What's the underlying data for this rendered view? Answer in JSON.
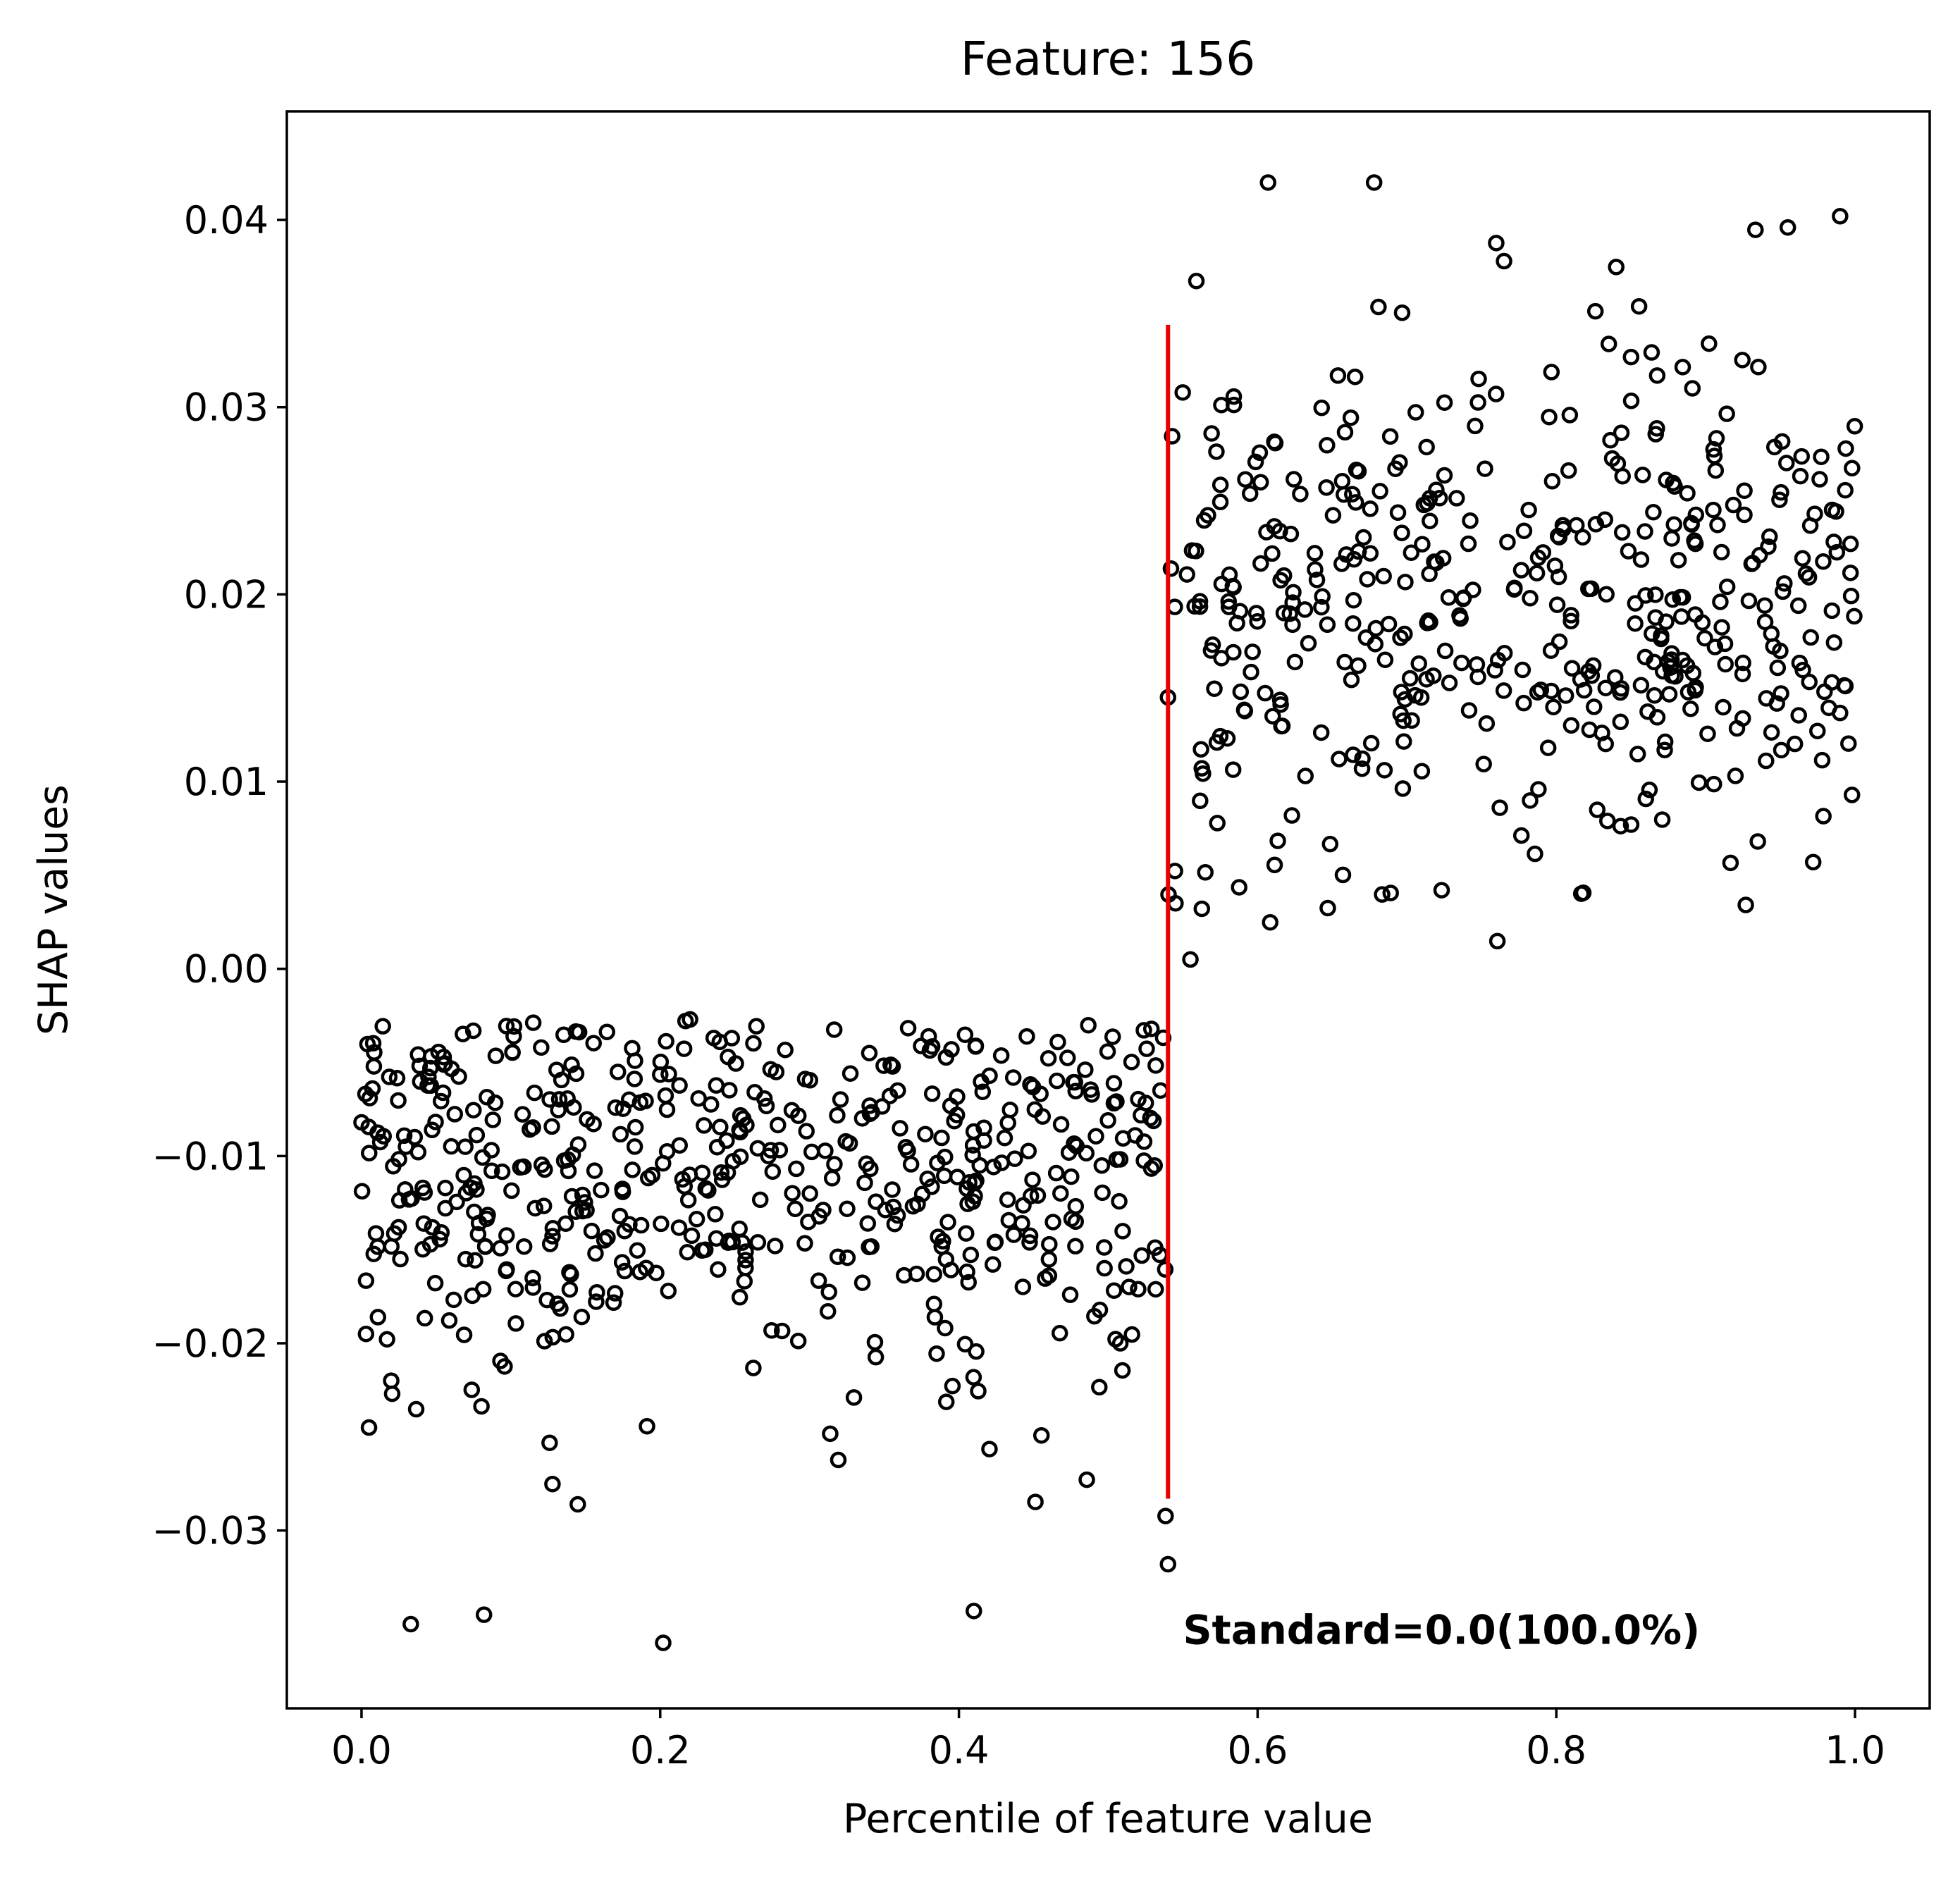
{
  "chart_data": {
    "type": "scatter",
    "title": "Feature: 156",
    "xlabel": "Percentile of feature value",
    "ylabel": "SHAP values",
    "xlim": [
      -0.05,
      1.05
    ],
    "ylim": [
      -0.0395,
      0.0458
    ],
    "x_ticks": [
      0.0,
      0.2,
      0.4,
      0.6,
      0.8,
      1.0
    ],
    "x_tick_labels": [
      "0.0",
      "0.2",
      "0.4",
      "0.6",
      "0.8",
      "1.0"
    ],
    "y_ticks": [
      -0.03,
      -0.02,
      -0.01,
      0.0,
      0.01,
      0.02,
      0.03,
      0.04
    ],
    "y_tick_labels": [
      "−0.03",
      "−0.02",
      "−0.01",
      "0.00",
      "0.01",
      "0.02",
      "0.03",
      "0.04"
    ],
    "grid": false,
    "marker": "hollow circle",
    "marker_color": "#000000",
    "threshold_line": {
      "x": 0.54,
      "y_range": [
        -0.0283,
        0.0344
      ],
      "color": "#e60000"
    },
    "annotation": {
      "text": "Standard=0.0(100.0%)",
      "x": 0.55,
      "y": -0.0353
    },
    "groups": [
      {
        "x_range": [
          0.0,
          0.54
        ],
        "y_center": -0.011,
        "y_range": [
          -0.036,
          -0.0027
        ],
        "count": 540,
        "sample_points": [
          [
            0.0,
            -0.0082
          ],
          [
            0.003,
            -0.0195
          ],
          [
            0.005,
            -0.0245
          ],
          [
            0.033,
            -0.035
          ],
          [
            0.082,
            -0.0345
          ],
          [
            0.202,
            -0.036
          ],
          [
            0.22,
            -0.0027
          ],
          [
            0.34,
            -0.0045
          ],
          [
            0.395,
            -0.0043
          ],
          [
            0.41,
            -0.0343
          ],
          [
            0.54,
            -0.0318
          ],
          [
            0.535,
            -0.0065
          ]
        ]
      },
      {
        "x_range": [
          0.54,
          1.0
        ],
        "y_center": 0.018,
        "y_range": [
          0.0005,
          0.042
        ],
        "count": 460,
        "sample_points": [
          [
            0.54,
            0.0145
          ],
          [
            0.545,
            0.0035
          ],
          [
            0.555,
            0.0005
          ],
          [
            0.607,
            0.042
          ],
          [
            0.678,
            0.042
          ],
          [
            0.765,
            0.0378
          ],
          [
            0.955,
            0.0396
          ],
          [
            0.99,
            0.0402
          ],
          [
            0.972,
            0.0057
          ],
          [
            0.997,
            0.0227
          ]
        ]
      }
    ]
  }
}
